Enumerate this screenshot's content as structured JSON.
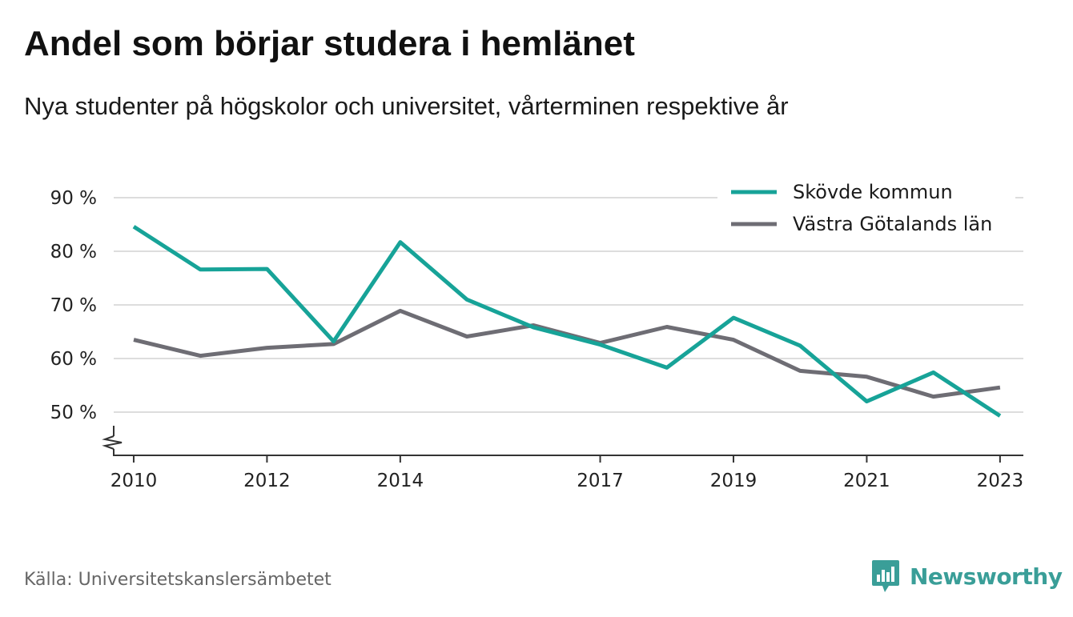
{
  "title": "Andel som börjar studera i hemlänet",
  "subtitle": "Nya studenter på högskolor och universitet, vårterminen respektive år",
  "source": "Källa: Universitetskanslersämbetet",
  "brand": {
    "name": "Newsworthy",
    "color": "#3a9e98",
    "icon": "newsworthy-logo-icon"
  },
  "chart_data": {
    "type": "line",
    "x": [
      2010,
      2011,
      2012,
      2013,
      2014,
      2015,
      2016,
      2017,
      2018,
      2019,
      2020,
      2021,
      2022,
      2023
    ],
    "x_ticks": [
      2010,
      2012,
      2014,
      2017,
      2019,
      2021,
      2023
    ],
    "x_tick_labels": [
      "2010",
      "2012",
      "2014",
      "2017",
      "2019",
      "2021",
      "2023"
    ],
    "y_ticks": [
      50,
      60,
      70,
      80,
      90
    ],
    "y_tick_labels": [
      "50 %",
      "60 %",
      "70 %",
      "80 %",
      "90 %"
    ],
    "ylim": [
      42,
      90
    ],
    "xlim": [
      2009.7,
      2023.35
    ],
    "axis_break": true,
    "grid": true,
    "legend_position": "top-right",
    "series": [
      {
        "name": "Skövde kommun",
        "color": "#17a398",
        "values": [
          84.6,
          76.6,
          76.7,
          63.2,
          81.7,
          71.0,
          65.8,
          62.6,
          58.3,
          67.6,
          62.4,
          52.0,
          57.4,
          49.3
        ]
      },
      {
        "name": "Västra Götalands län",
        "color": "#6e6d74",
        "values": [
          63.5,
          60.5,
          62.0,
          62.7,
          68.9,
          64.1,
          66.2,
          62.9,
          65.9,
          63.5,
          57.7,
          56.6,
          52.9,
          54.6
        ]
      }
    ]
  }
}
